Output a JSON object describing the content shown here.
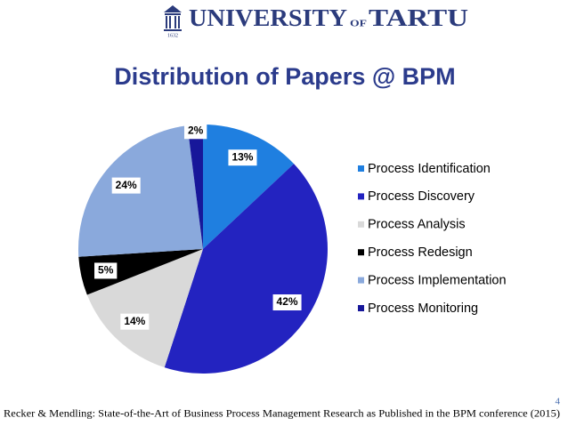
{
  "header": {
    "logo_main": "UNIVERSITY",
    "logo_of": "OF",
    "logo_city": "TARTU",
    "logo_year": "1632"
  },
  "chart_data": {
    "type": "pie",
    "title": "Distribution of Papers @ BPM",
    "categories": [
      "Process Identification",
      "Process Discovery",
      "Process Analysis",
      "Process Redesign",
      "Process Implementation",
      "Process Monitoring"
    ],
    "values": [
      13,
      42,
      14,
      5,
      24,
      2
    ],
    "value_labels": [
      "13%",
      "42%",
      "14%",
      "5%",
      "24%",
      "2%"
    ],
    "colors": [
      "#1f7fe0",
      "#2323c0",
      "#d9d9d9",
      "#000000",
      "#8aa9dc",
      "#17179a"
    ],
    "legend": "right"
  },
  "footer": {
    "citation": "Recker & Mendling: State-of-the-Art of Business Process Management Research as Published in the BPM conference (2015)",
    "page": "4"
  }
}
